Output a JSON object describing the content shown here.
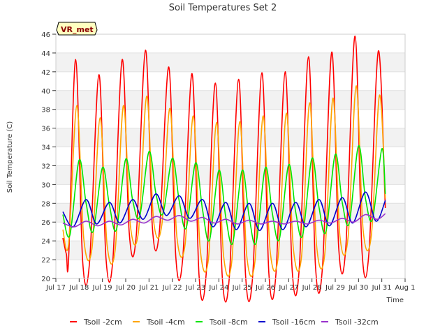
{
  "chart_data": {
    "type": "line",
    "title": "Soil Temperatures Set 2",
    "xlabel": "Time",
    "ylabel": "Soil Temperature (C)",
    "badge": "VR_met",
    "ylim": [
      20,
      46
    ],
    "yticks": [
      20,
      22,
      24,
      26,
      28,
      30,
      32,
      34,
      36,
      38,
      40,
      42,
      44,
      46
    ],
    "xlim": [
      17,
      32
    ],
    "xticks": [
      {
        "value": 17,
        "label": "Jul 17"
      },
      {
        "value": 18,
        "label": "Jul 18"
      },
      {
        "value": 19,
        "label": "Jul 19"
      },
      {
        "value": 20,
        "label": "Jul 20"
      },
      {
        "value": 21,
        "label": "Jul 21"
      },
      {
        "value": 22,
        "label": "Jul 22"
      },
      {
        "value": 23,
        "label": "Jul 23"
      },
      {
        "value": 24,
        "label": "Jul 24"
      },
      {
        "value": 25,
        "label": "Jul 25"
      },
      {
        "value": 26,
        "label": "Jul 26"
      },
      {
        "value": 27,
        "label": "Jul 27"
      },
      {
        "value": 28,
        "label": "Jul 28"
      },
      {
        "value": 29,
        "label": "Jul 29"
      },
      {
        "value": 30,
        "label": "Jul 30"
      },
      {
        "value": 31,
        "label": "Jul 31"
      },
      {
        "value": 32,
        "label": "Aug 1"
      }
    ],
    "grid": true,
    "legend_position": "bottom",
    "series": [
      {
        "name": "Tsoil -2cm",
        "color": "#ff0000",
        "x": [
          17.3,
          17.45,
          17.55,
          17.85,
          18.15,
          18.45,
          18.85,
          19.15,
          19.45,
          19.85,
          20.15,
          20.45,
          20.85,
          21.15,
          21.45,
          21.85,
          22.15,
          22.45,
          22.85,
          23.15,
          23.45,
          23.85,
          24.15,
          24.45,
          24.85,
          25.15,
          25.45,
          25.85,
          26.15,
          26.45,
          26.85,
          27.15,
          27.45,
          27.85,
          28.15,
          28.45,
          28.85,
          29.15,
          29.45,
          29.85,
          30.15,
          30.45,
          30.85,
          31.15
        ],
        "y": [
          24.3,
          22.6,
          22.2,
          43.3,
          21.9,
          21.8,
          41.7,
          22.2,
          22.1,
          43.3,
          24.9,
          24.5,
          44.3,
          25.3,
          25.1,
          42.5,
          22.3,
          22.2,
          41.8,
          20.3,
          20.3,
          40.8,
          20.1,
          20.1,
          41.2,
          20.2,
          20.2,
          41.9,
          20.5,
          20.4,
          42.0,
          20.9,
          20.9,
          43.6,
          21.3,
          21.2,
          44.1,
          23.2,
          23.2,
          45.8,
          22.9,
          22.8,
          44.2,
          27.5
        ]
      },
      {
        "name": "Tsoil -4cm",
        "color": "#ffa500",
        "x": [
          17.3,
          17.55,
          17.9,
          18.2,
          18.55,
          18.9,
          19.2,
          19.55,
          19.9,
          20.2,
          20.55,
          20.9,
          21.2,
          21.55,
          21.9,
          22.2,
          22.55,
          22.9,
          23.2,
          23.55,
          23.9,
          24.2,
          24.55,
          24.9,
          25.2,
          25.55,
          25.9,
          26.2,
          26.55,
          26.9,
          27.2,
          27.55,
          27.9,
          28.2,
          28.55,
          28.9,
          29.2,
          29.55,
          29.9,
          30.2,
          30.55,
          30.9,
          31.15
        ],
        "y": [
          25.2,
          23.7,
          38.4,
          24.2,
          23.2,
          37.1,
          23.6,
          23.1,
          38.4,
          25.6,
          25.0,
          39.4,
          26.1,
          25.7,
          38.1,
          24.4,
          23.6,
          37.3,
          23.1,
          22.0,
          36.6,
          22.5,
          21.7,
          36.7,
          22.4,
          21.8,
          37.3,
          23.0,
          22.3,
          37.6,
          23.2,
          22.3,
          38.7,
          23.5,
          22.6,
          39.2,
          24.5,
          24.3,
          40.5,
          25.1,
          24.6,
          39.5,
          28.5
        ]
      },
      {
        "name": "Tsoil -8cm",
        "color": "#00e600",
        "x": [
          17.3,
          17.6,
          18.0,
          18.3,
          18.6,
          19.0,
          19.3,
          19.6,
          20.0,
          20.3,
          20.6,
          21.0,
          21.3,
          21.6,
          22.0,
          22.3,
          22.6,
          23.0,
          23.3,
          23.6,
          24.0,
          24.3,
          24.6,
          25.0,
          25.3,
          25.6,
          26.0,
          26.3,
          26.6,
          27.0,
          27.3,
          27.6,
          28.0,
          28.3,
          28.6,
          29.0,
          29.3,
          29.6,
          30.0,
          30.3,
          30.6,
          31.0,
          31.15
        ],
        "y": [
          26.8,
          24.6,
          32.6,
          28.0,
          25.0,
          31.8,
          27.8,
          25.2,
          32.7,
          28.3,
          26.6,
          33.5,
          29.0,
          26.9,
          32.8,
          28.2,
          25.4,
          32.3,
          27.3,
          24.1,
          31.5,
          26.5,
          23.8,
          31.5,
          26.6,
          23.8,
          31.8,
          26.9,
          24.2,
          32.1,
          27.1,
          24.6,
          32.8,
          27.6,
          25.0,
          33.2,
          28.1,
          25.9,
          34.1,
          28.5,
          26.3,
          33.8,
          29.0
        ]
      },
      {
        "name": "Tsoil -16cm",
        "color": "#0000cd",
        "x": [
          17.3,
          17.75,
          18.3,
          18.75,
          19.3,
          19.75,
          20.3,
          20.75,
          21.3,
          21.75,
          22.3,
          22.75,
          23.3,
          23.75,
          24.3,
          24.75,
          25.3,
          25.75,
          26.3,
          26.75,
          27.3,
          27.75,
          28.3,
          28.75,
          29.3,
          29.75,
          30.3,
          30.75,
          31.15
        ],
        "y": [
          27.1,
          25.5,
          28.4,
          25.8,
          28.1,
          25.9,
          28.4,
          26.3,
          29.0,
          26.7,
          28.8,
          26.4,
          28.4,
          25.5,
          28.1,
          25.2,
          28.0,
          25.1,
          28.0,
          25.2,
          28.1,
          25.5,
          28.4,
          25.6,
          28.6,
          25.9,
          29.2,
          26.1,
          28.3
        ]
      },
      {
        "name": "Tsoil -32cm",
        "color": "#9932cc",
        "x": [
          17.3,
          17.8,
          18.3,
          18.8,
          19.3,
          19.8,
          20.3,
          20.8,
          21.3,
          21.8,
          22.3,
          22.8,
          23.3,
          23.8,
          24.3,
          24.8,
          25.3,
          25.8,
          26.3,
          26.8,
          27.3,
          27.8,
          28.3,
          28.8,
          29.3,
          29.8,
          30.3,
          30.8,
          31.15
        ],
        "y": [
          25.9,
          25.5,
          26.1,
          25.6,
          26.1,
          25.7,
          26.3,
          25.9,
          26.6,
          26.2,
          26.7,
          26.1,
          26.5,
          25.9,
          26.3,
          25.8,
          26.2,
          25.8,
          26.1,
          25.8,
          26.1,
          25.8,
          26.2,
          25.9,
          26.4,
          26.0,
          26.8,
          26.3,
          26.9
        ]
      }
    ]
  }
}
